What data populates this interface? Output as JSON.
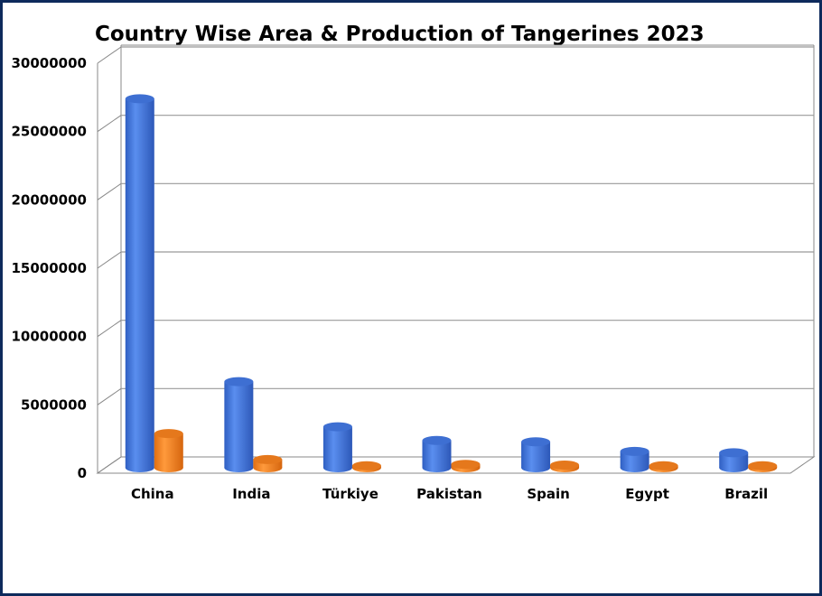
{
  "chart_data": {
    "type": "bar",
    "title": "Country Wise Area & Production of Tangerines 2023",
    "categories": [
      "China",
      "India",
      "Türkiye",
      "Pakistan",
      "Spain",
      "Egypt",
      "Brazil"
    ],
    "series": [
      {
        "values": [
          27000000,
          6300000,
          3000000,
          2000000,
          1900000,
          1200000,
          1100000
        ],
        "color": "#4a7fe0"
      },
      {
        "values": [
          2500000,
          600000,
          150000,
          250000,
          200000,
          150000,
          150000
        ],
        "color": "#f58a2a"
      }
    ],
    "yticks": [
      "0",
      "5000000",
      "10000000",
      "15000000",
      "20000000",
      "25000000",
      "30000000"
    ],
    "ylim": [
      0,
      30000000
    ],
    "grid": true,
    "legend": "none"
  }
}
